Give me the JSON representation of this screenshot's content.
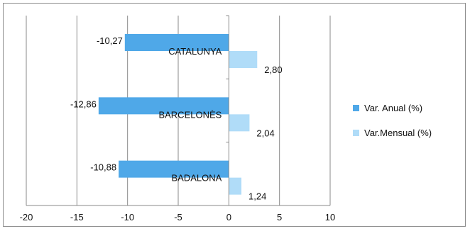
{
  "chart_data": {
    "type": "bar",
    "orientation": "horizontal",
    "categories": [
      "CATALUNYA",
      "BARCELONÈS",
      "BADALONA"
    ],
    "series": [
      {
        "name": "Var. Anual (%)",
        "color": "#4fa8e8",
        "values": [
          -10.27,
          -12.86,
          -10.88
        ],
        "labels": [
          "-10,27",
          "-12,86",
          "-10,88"
        ]
      },
      {
        "name": "Var.Mensual (%)",
        "color": "#b0dcf8",
        "values": [
          2.8,
          2.04,
          1.24
        ],
        "labels": [
          "2,80",
          "2,04",
          "1,24"
        ]
      }
    ],
    "x_ticks": [
      -20,
      -15,
      -10,
      -5,
      0,
      5,
      10
    ],
    "x_tick_labels": [
      "-20",
      "-15",
      "-10",
      "-5",
      "0",
      "5",
      "10"
    ],
    "xlim": [
      -20,
      10
    ],
    "grid": "vertical",
    "legend_position": "right"
  }
}
